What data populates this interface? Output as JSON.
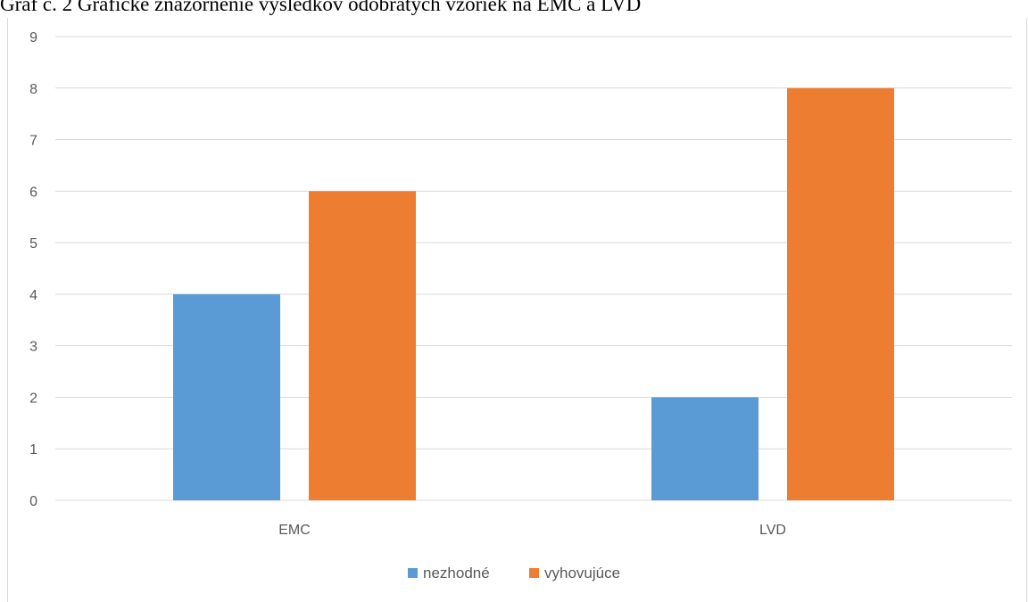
{
  "caption": "Graf č. 2 Grafické znázornenie výsledkov odobratých vzoriek na EMC a LVD",
  "chart_data": {
    "type": "bar",
    "title": "",
    "xlabel": "",
    "ylabel": "",
    "categories": [
      "EMC",
      "LVD"
    ],
    "series": [
      {
        "name": "nezhodné",
        "values": [
          4,
          2
        ],
        "color": "#5b9bd5"
      },
      {
        "name": "vyhovujúce",
        "values": [
          6,
          8
        ],
        "color": "#ed7d31"
      }
    ],
    "ylim": [
      0,
      9
    ],
    "yticks": [
      "0",
      "1",
      "2",
      "3",
      "4",
      "5",
      "6",
      "7",
      "8",
      "9"
    ],
    "grid": true,
    "legend_position": "bottom",
    "gridline_color": "#d9d9d9"
  }
}
